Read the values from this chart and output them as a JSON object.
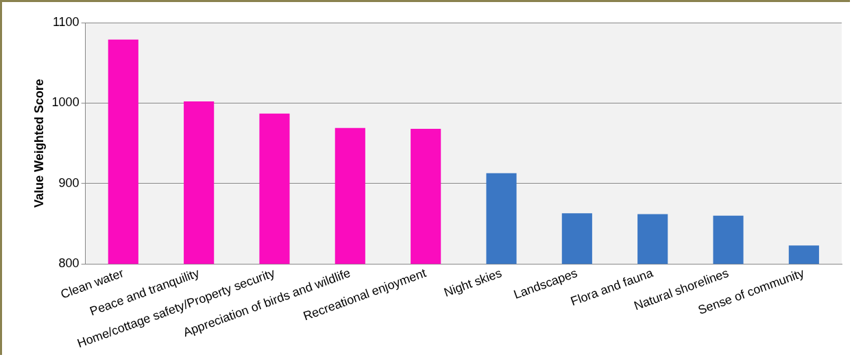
{
  "chart_data": {
    "type": "bar",
    "ylabel": "Value Weighted Score",
    "categories": [
      "Clean water",
      "Peace and tranquility",
      "Home/cottage safety/Property security",
      "Appreciation of birds and wildlife",
      "Recreational enjoyment",
      "Night skies",
      "Landscapes",
      "Flora and fauna",
      "Natural shorelines",
      "Sense of community"
    ],
    "values": [
      1079,
      1002,
      987,
      969,
      968,
      913,
      863,
      862,
      860,
      823
    ],
    "colors": [
      "#fa0cbe",
      "#fa0cbe",
      "#fa0cbe",
      "#fa0cbe",
      "#fa0cbe",
      "#3b77c4",
      "#3b77c4",
      "#3b77c4",
      "#3b77c4",
      "#3b77c4"
    ],
    "ylim": [
      800,
      1100
    ],
    "yticks": [
      800,
      900,
      1000,
      1100
    ],
    "grid": "y",
    "legend": false
  }
}
